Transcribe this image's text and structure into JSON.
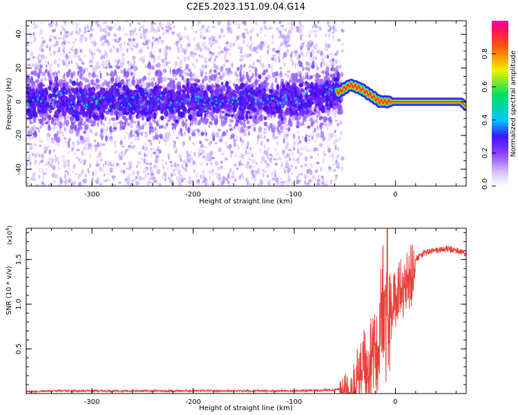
{
  "title": "C2E5.2023.151.09.04.G14",
  "colors": {
    "snr_line": "#e8403a",
    "noise_purple": "#8a4dff",
    "frame": "#000000"
  },
  "chart_data": [
    {
      "type": "heatmap",
      "xlabel": "Height of straight line (km)",
      "ylabel": "Frequency (Hz)",
      "xlim": [
        -365,
        70
      ],
      "ylim": [
        -50,
        48
      ],
      "x_ticks": [
        -300,
        -200,
        -100,
        0
      ],
      "y_ticks": [
        -40,
        -20,
        0,
        20,
        40
      ],
      "x_tick_labels": [
        "-300",
        "-200",
        "-100",
        "0"
      ],
      "y_tick_labels": [
        "-40",
        "-20",
        "0",
        "20",
        "40"
      ],
      "colorbar": {
        "label": "Normalized spectral amplitude",
        "range": [
          0,
          1
        ],
        "ticks": [
          0.0,
          0.2,
          0.4,
          0.6,
          0.8
        ],
        "tick_labels": [
          "0.0",
          "0.2",
          "0.4",
          "0.6",
          "0.8"
        ],
        "colormap": [
          "#ffffff",
          "#b48cff",
          "#5a1ee6",
          "#2a1aff",
          "#00c8ff",
          "#00e060",
          "#f0f000",
          "#ff5000",
          "#ff1060",
          "#ff00a0"
        ]
      },
      "ridge": {
        "description_points": [
          [
            -365,
            2
          ],
          [
            -300,
            0
          ],
          [
            -200,
            1
          ],
          [
            -100,
            1
          ],
          [
            -55,
            6
          ],
          [
            -45,
            10
          ],
          [
            -35,
            8
          ],
          [
            -25,
            4
          ],
          [
            -15,
            0
          ],
          [
            0,
            0
          ],
          [
            30,
            0
          ],
          [
            65,
            0
          ],
          [
            70,
            -3
          ]
        ]
      }
    },
    {
      "type": "line",
      "xlabel": "Height of straight line (km)",
      "ylabel": "SNR (10 * v/v)",
      "y_multiplier": "(x10",
      "y_multiplier_exp": "4",
      "y_multiplier_close": ")",
      "xlim": [
        -365,
        70
      ],
      "ylim": [
        0.0,
        1.85
      ],
      "x_ticks": [
        -300,
        -200,
        -100,
        0
      ],
      "y_ticks": [
        0.5,
        1.0,
        1.5
      ],
      "x_tick_labels": [
        "-300",
        "-200",
        "-100",
        "0"
      ],
      "y_tick_labels": [
        "0.5",
        "1.0",
        "1.5"
      ],
      "series": [
        {
          "values_x": [
            -365,
            -340,
            -300,
            -250,
            -200,
            -150,
            -100,
            -60,
            -50,
            -45,
            -40,
            -35,
            -30,
            -25,
            -22,
            -18,
            -15,
            -12,
            -10,
            -8,
            -5,
            -2,
            0,
            5,
            10,
            15,
            20,
            25,
            30,
            40,
            50,
            60,
            70
          ],
          "values_y": [
            0.02,
            0.03,
            0.03,
            0.03,
            0.03,
            0.03,
            0.03,
            0.04,
            0.06,
            0.1,
            0.2,
            0.3,
            0.45,
            0.6,
            0.7,
            0.8,
            0.95,
            1.3,
            1.05,
            0.9,
            1.05,
            1.1,
            1.2,
            1.3,
            1.35,
            1.45,
            1.5,
            1.55,
            1.58,
            1.6,
            1.62,
            1.6,
            1.57
          ]
        }
      ]
    }
  ]
}
